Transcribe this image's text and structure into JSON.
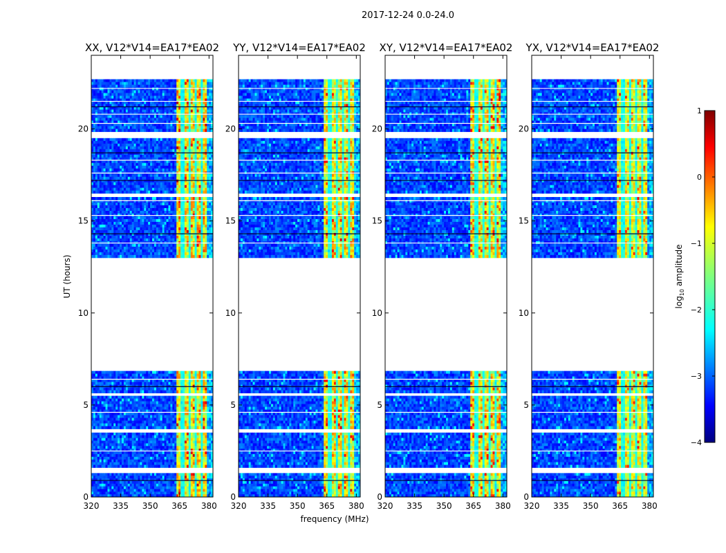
{
  "chart_data": {
    "type": "heatmap",
    "suptitle": "2017-12-24 0.0-24.0",
    "xlabel": "frequency (MHz)",
    "ylabel": "UT (hours)",
    "xlim": [
      320,
      382
    ],
    "ylim": [
      0,
      24
    ],
    "xticks": [
      320,
      335,
      350,
      365,
      380
    ],
    "yticks": [
      0,
      5,
      10,
      15,
      20
    ],
    "panels": [
      {
        "title": "XX, V12*V14=EA17*EA02",
        "band_strength": 1.0
      },
      {
        "title": "YY, V12*V14=EA17*EA02",
        "band_strength": 0.9
      },
      {
        "title": "XY, V12*V14=EA17*EA02",
        "band_strength": 0.95
      },
      {
        "title": "YX, V12*V14=EA17*EA02",
        "band_strength": 0.75
      }
    ],
    "data_segments_ut": [
      [
        0.0,
        1.3
      ],
      [
        1.6,
        3.5
      ],
      [
        3.7,
        5.5
      ],
      [
        5.65,
        6.85
      ],
      [
        13.0,
        16.3
      ],
      [
        16.5,
        19.5
      ],
      [
        19.85,
        22.7
      ]
    ],
    "flag_lines_ut": [
      0.9,
      2.5,
      4.6,
      6.0,
      6.4,
      13.8,
      14.3,
      15.3,
      16.1,
      17.2,
      17.6,
      18.3,
      18.7,
      20.3,
      20.8,
      21.2,
      21.5,
      22.2
    ],
    "bright_band_mhz": [
      363.5,
      378.5
    ],
    "channel_gaps_mhz": [
      366.5,
      370.0,
      373.5,
      376.5
    ],
    "weak_edge_mhz": [
      378.5,
      382.0
    ],
    "colorbar": {
      "label": "log10 amplitude",
      "min": -4,
      "max": 1,
      "ticks": [
        1,
        0,
        -1,
        -2,
        -3,
        -4
      ],
      "tick_labels": [
        "1",
        "0",
        "−1",
        "−2",
        "−3",
        "−4"
      ],
      "colormap": "jet"
    }
  }
}
